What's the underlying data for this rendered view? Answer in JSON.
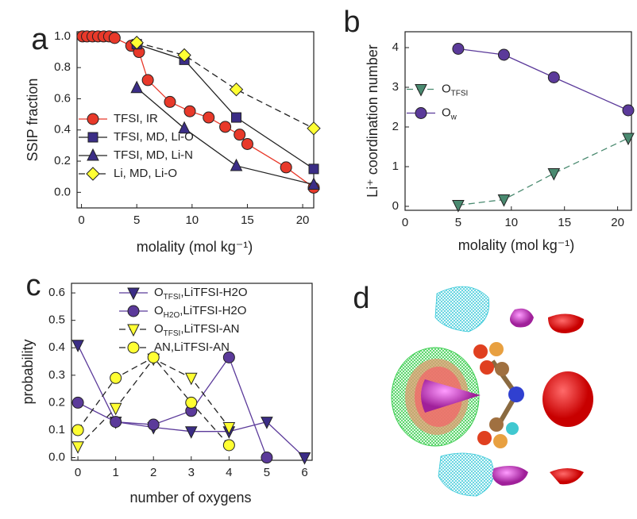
{
  "chart_data": [
    {
      "type": "line",
      "panel": "a",
      "x_label": "molality (mol kg⁻¹)",
      "y_label": "SSIP fraction",
      "legend": "lower left",
      "xlim": [
        -0.4,
        21
      ],
      "ylim": [
        -0.1,
        1.03
      ],
      "xticks": [
        0,
        5,
        10,
        15,
        20
      ],
      "yticks": [
        {
          "value": 0,
          "label": "0.0"
        },
        {
          "value": 0.2,
          "label": "0.2"
        },
        {
          "value": 0.4,
          "label": "0.4"
        },
        {
          "value": 0.6,
          "label": "0.6"
        },
        {
          "value": 0.8,
          "label": "0.8"
        },
        {
          "value": 1,
          "label": "1.0"
        }
      ],
      "series": [
        {
          "name": [
            "TFSI, IR"
          ],
          "marker": "circle",
          "color": "#e8392a",
          "line_color": "#e8392a",
          "dash": false,
          "x": [
            0.1,
            0.5,
            1,
            1.5,
            2,
            2.5,
            3,
            4.5,
            5.2,
            6,
            8,
            9.8,
            11.5,
            13,
            14.3,
            15,
            18.5,
            21
          ],
          "values": [
            1,
            1,
            1,
            1,
            1,
            1,
            0.99,
            0.94,
            0.9,
            0.72,
            0.58,
            0.52,
            0.48,
            0.42,
            0.37,
            0.31,
            0.16,
            0.03
          ]
        },
        {
          "name": [
            "TFSI, MD, Li-O"
          ],
          "marker": "square",
          "color": "#3b2d86",
          "line_color": "#222222",
          "dash": false,
          "x": [
            5,
            9.3,
            14,
            21
          ],
          "values": [
            0.95,
            0.85,
            0.48,
            0.15
          ]
        },
        {
          "name": [
            "TFSI, MD, Li-N"
          ],
          "marker": "triangle-up",
          "color": "#3b2d86",
          "line_color": "#222222",
          "dash": false,
          "x": [
            5,
            9.3,
            14,
            21
          ],
          "values": [
            0.67,
            0.41,
            0.17,
            0.05
          ]
        },
        {
          "name": [
            "Li, MD, Li-O"
          ],
          "marker": "diamond",
          "color": "#ffff33",
          "line_color": "#222222",
          "dash": true,
          "x": [
            5,
            9.3,
            14,
            21
          ],
          "values": [
            0.96,
            0.88,
            0.66,
            0.41
          ]
        }
      ]
    },
    {
      "type": "line",
      "panel": "b",
      "x_label": "molality (mol kg⁻¹)",
      "y_label": "Li⁺ coordination number",
      "legend": "center left",
      "xlim": [
        0,
        21.3
      ],
      "ylim": [
        -0.1,
        4.4
      ],
      "xticks": [
        0,
        5,
        10,
        15,
        20
      ],
      "yticks": [
        0,
        1,
        2,
        3,
        4
      ],
      "series": [
        {
          "name": [
            "O",
            "TFSI"
          ],
          "marker": "triangle-down",
          "color": "#4a8a70",
          "line_color": "#4a8a70",
          "dash": true,
          "x": [
            5,
            9.3,
            14,
            21
          ],
          "values": [
            0.03,
            0.17,
            0.83,
            1.72
          ]
        },
        {
          "name": [
            "O",
            "w"
          ],
          "marker": "circle",
          "color": "#5b3a9a",
          "line_color": "#5b3a9a",
          "dash": false,
          "x": [
            5,
            9.3,
            14,
            21
          ],
          "values": [
            3.97,
            3.82,
            3.25,
            2.42
          ]
        }
      ]
    },
    {
      "type": "line",
      "panel": "c",
      "x_label": "number of oxygens",
      "y_label": "probability",
      "legend": "upper center",
      "xlim": [
        -0.17,
        6.2
      ],
      "ylim": [
        -0.01,
        0.635
      ],
      "xticks": [
        0,
        1,
        2,
        3,
        4,
        5,
        6
      ],
      "yticks": [
        {
          "value": 0,
          "label": "0.0"
        },
        {
          "value": 0.1,
          "label": "0.1"
        },
        {
          "value": 0.2,
          "label": "0.2"
        },
        {
          "value": 0.3,
          "label": "0.3"
        },
        {
          "value": 0.4,
          "label": "0.4"
        },
        {
          "value": 0.5,
          "label": "0.5"
        },
        {
          "value": 0.6,
          "label": "0.6"
        }
      ],
      "series": [
        {
          "name": [
            "O",
            "TFSI",
            ",LiTFSI-H2O"
          ],
          "marker": "triangle-down",
          "color": "#3b2d86",
          "line_color": "#5b3a9a",
          "dash": false,
          "x": [
            0,
            1,
            2,
            3,
            4,
            5,
            6
          ],
          "values": [
            0.41,
            0.13,
            0.11,
            0.095,
            0.095,
            0.13,
            0
          ]
        },
        {
          "name": [
            "O",
            "H2O",
            ",LiTFSI-H2O"
          ],
          "marker": "circle",
          "color": "#5b3a9a",
          "line_color": "#5b3a9a",
          "dash": false,
          "x": [
            0,
            1,
            2,
            3,
            4,
            5
          ],
          "values": [
            0.2,
            0.13,
            0.12,
            0.17,
            0.365,
            0
          ]
        },
        {
          "name": [
            "O",
            "TFSI",
            ",LiTFSI-AN"
          ],
          "marker": "triangle-down",
          "color": "#ffff33",
          "line_color": "#222222",
          "dash": true,
          "x": [
            0,
            1,
            2,
            3,
            4
          ],
          "values": [
            0.04,
            0.18,
            0.36,
            0.29,
            0.11
          ]
        },
        {
          "name": [
            "AN,LiTFSI-AN"
          ],
          "marker": "circle",
          "color": "#ffff33",
          "line_color": "#222222",
          "dash": true,
          "x": [
            0,
            1,
            2,
            3,
            4
          ],
          "values": [
            0.1,
            0.29,
            0.365,
            0.2,
            0.045
          ]
        }
      ]
    }
  ],
  "image_panel": {
    "label": "d"
  }
}
